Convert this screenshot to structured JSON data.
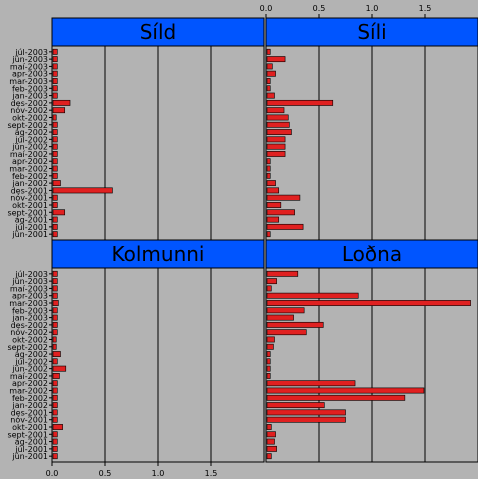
{
  "chart_data": {
    "type": "bar",
    "orientation": "horizontal",
    "layout": "2x2 facets",
    "xlim": [
      0,
      2
    ],
    "xticks": [
      "0.0",
      "0.5",
      "1.0",
      "1.5"
    ],
    "colors": {
      "background": "#b3b3b3",
      "strip": "#0055ff",
      "bar": "#e02020",
      "bar_border": "#000000",
      "grid": "#000000"
    },
    "categories": [
      "júl-2003",
      "jún-2003",
      "maí-2003",
      "apr-2003",
      "mar-2003",
      "feb-2003",
      "jan-2003",
      "des-2002",
      "nóv-2002",
      "okt-2002",
      "sept-2002",
      "ág-2002",
      "júl-2002",
      "jún-2002",
      "maí-2002",
      "apr-2002",
      "mar-2002",
      "feb-2002",
      "jan-2002",
      "des-2001",
      "nóv-2001",
      "okt-2001",
      "sept-2001",
      "ág-2001",
      "júl-2001",
      "jún-2001"
    ],
    "panels": [
      {
        "title": "Síld",
        "values": [
          0.05,
          0.05,
          0.05,
          0.05,
          0.05,
          0.05,
          0.05,
          0.17,
          0.12,
          0.04,
          0.05,
          0.05,
          0.05,
          0.05,
          0.05,
          0.05,
          0.05,
          0.05,
          0.08,
          0.57,
          0.05,
          0.05,
          0.12,
          0.05,
          0.05,
          0.05
        ]
      },
      {
        "title": "Síli",
        "values": [
          0.04,
          0.18,
          0.06,
          0.09,
          0.04,
          0.04,
          0.08,
          0.63,
          0.17,
          0.21,
          0.22,
          0.24,
          0.18,
          0.18,
          0.18,
          0.04,
          0.04,
          0.04,
          0.09,
          0.12,
          0.32,
          0.14,
          0.27,
          0.12,
          0.35,
          0.04
        ]
      },
      {
        "title": "Kolmunni",
        "values": [
          0.05,
          0.05,
          0.05,
          0.05,
          0.06,
          0.05,
          0.05,
          0.05,
          0.05,
          0.04,
          0.04,
          0.08,
          0.05,
          0.13,
          0.07,
          0.05,
          0.05,
          0.05,
          0.05,
          0.05,
          0.05,
          0.1,
          0.05,
          0.05,
          0.05,
          0.05
        ]
      },
      {
        "title": "Loðna",
        "values": [
          0.3,
          0.1,
          0.05,
          0.87,
          1.93,
          0.36,
          0.26,
          0.54,
          0.38,
          0.08,
          0.07,
          0.04,
          0.04,
          0.04,
          0.04,
          0.84,
          1.49,
          1.31,
          0.55,
          0.75,
          0.75,
          0.05,
          0.09,
          0.08,
          0.1,
          0.05
        ]
      }
    ]
  }
}
